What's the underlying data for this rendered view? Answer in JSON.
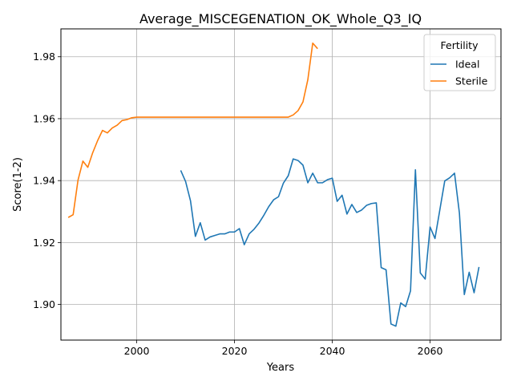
{
  "chart_data": {
    "type": "line",
    "title": "Average_MISCEGENATION_OK_Whole_Q3_IQ",
    "xlabel": "Years",
    "ylabel": "Score(1-2)",
    "xlim": [
      1984.5,
      2074.5
    ],
    "ylim": [
      1.8885,
      1.989
    ],
    "xticks": [
      2000,
      2020,
      2040,
      2060
    ],
    "yticks": [
      1.9,
      1.92,
      1.94,
      1.96,
      1.98
    ],
    "xtick_labels": [
      "2000",
      "2020",
      "2040",
      "2060"
    ],
    "ytick_labels": [
      "1.90",
      "1.92",
      "1.94",
      "1.96",
      "1.98"
    ],
    "grid": true,
    "legend": {
      "title": "Fertility",
      "position": "top-right"
    },
    "series": [
      {
        "name": "Ideal",
        "color": "#1f77b4",
        "x": [
          2009,
          2010,
          2011,
          2012,
          2013,
          2014,
          2015,
          2016,
          2017,
          2018,
          2019,
          2020,
          2021,
          2022,
          2023,
          2024,
          2025,
          2026,
          2027,
          2028,
          2029,
          2030,
          2031,
          2032,
          2033,
          2034,
          2035,
          2036,
          2037,
          2038,
          2039,
          2040,
          2041,
          2042,
          2043,
          2044,
          2045,
          2046,
          2047,
          2048,
          2049,
          2050,
          2051,
          2052,
          2053,
          2054,
          2055,
          2056,
          2057,
          2058,
          2059,
          2060,
          2061,
          2062,
          2063,
          2064,
          2065,
          2066,
          2067,
          2068,
          2069,
          2070
        ],
        "values": [
          1.9433,
          1.9397,
          1.9335,
          1.922,
          1.9264,
          1.9208,
          1.9218,
          1.9223,
          1.9228,
          1.9228,
          1.9234,
          1.9234,
          1.9245,
          1.9193,
          1.9228,
          1.9243,
          1.9263,
          1.9288,
          1.9316,
          1.9338,
          1.9348,
          1.9392,
          1.9416,
          1.947,
          1.9465,
          1.945,
          1.9393,
          1.9424,
          1.9393,
          1.9393,
          1.9403,
          1.9408,
          1.9333,
          1.9353,
          1.9292,
          1.9323,
          1.9297,
          1.9305,
          1.932,
          1.9326,
          1.9328,
          1.9119,
          1.9112,
          1.8937,
          1.893,
          1.9005,
          1.8993,
          1.9044,
          1.9435,
          1.9102,
          1.9082,
          1.925,
          1.9213,
          1.9306,
          1.9399,
          1.9409,
          1.9424,
          1.9295,
          1.9032,
          1.9104,
          1.9038,
          1.9121
        ]
      },
      {
        "name": "Sterile",
        "color": "#ff7f0e",
        "x": [
          1986,
          1987,
          1988,
          1989,
          1990,
          1991,
          1992,
          1993,
          1994,
          1995,
          1996,
          1997,
          1998,
          1999,
          2000,
          2001,
          2002,
          2003,
          2004,
          2005,
          2006,
          2007,
          2008,
          2009,
          2010,
          2011,
          2012,
          2013,
          2014,
          2015,
          2016,
          2017,
          2018,
          2019,
          2020,
          2021,
          2022,
          2023,
          2024,
          2025,
          2026,
          2027,
          2028,
          2029,
          2030,
          2031,
          2032,
          2033,
          2034,
          2035,
          2036,
          2037
        ],
        "values": [
          1.9281,
          1.929,
          1.9402,
          1.9463,
          1.9443,
          1.949,
          1.9529,
          1.9562,
          1.9554,
          1.957,
          1.9579,
          1.9594,
          1.9597,
          1.9603,
          1.9605,
          1.9605,
          1.9605,
          1.9605,
          1.9605,
          1.9605,
          1.9605,
          1.9605,
          1.9605,
          1.9605,
          1.9605,
          1.9605,
          1.9605,
          1.9605,
          1.9605,
          1.9605,
          1.9605,
          1.9605,
          1.9605,
          1.9605,
          1.9605,
          1.9605,
          1.9605,
          1.9605,
          1.9605,
          1.9605,
          1.9605,
          1.9605,
          1.9605,
          1.9605,
          1.9605,
          1.9605,
          1.9612,
          1.9626,
          1.9654,
          1.9726,
          1.9844,
          1.9826
        ]
      }
    ]
  }
}
